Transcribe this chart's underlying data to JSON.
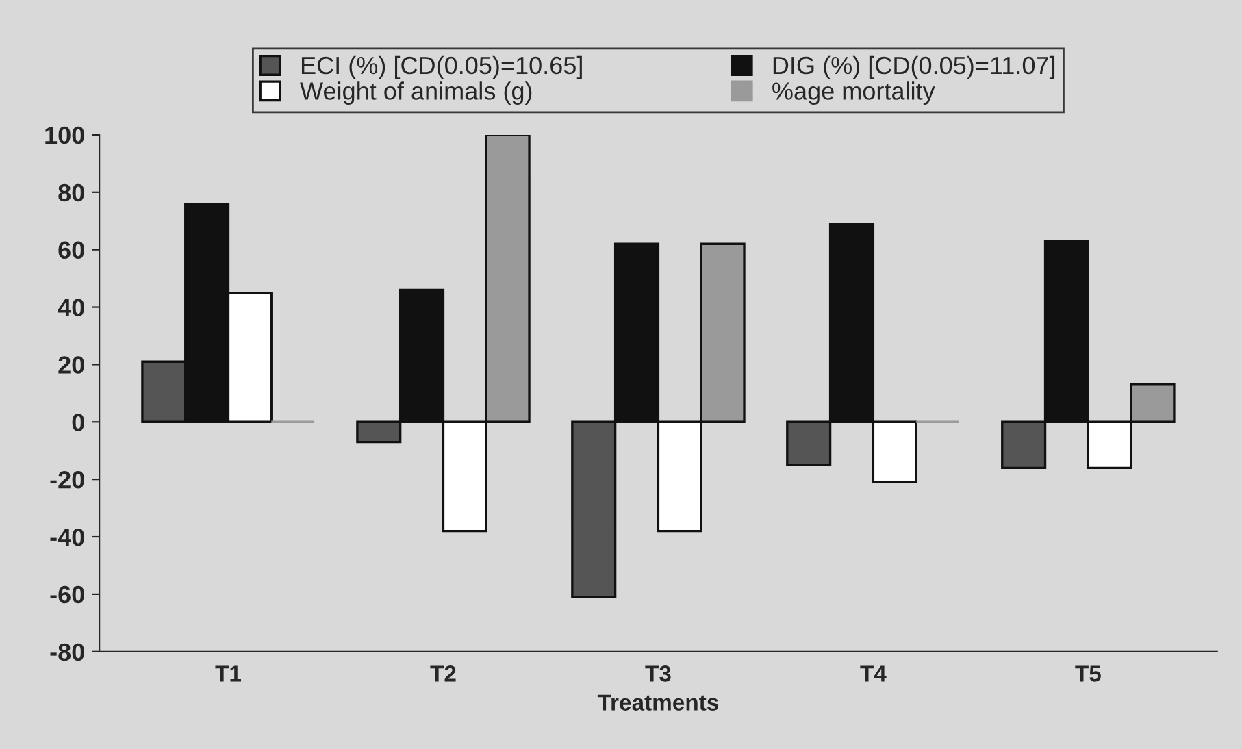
{
  "chart_data": {
    "type": "bar",
    "xlabel": "Treatments",
    "categories": [
      "T1",
      "T2",
      "T3",
      "T4",
      "T5"
    ],
    "series": [
      {
        "name": "ECI (%) [CD(0.05)=10.65]",
        "color": "#555555",
        "values": [
          21,
          -7,
          -61,
          -15,
          -16
        ]
      },
      {
        "name": "DIG (%) [CD(0.05)=11.07]",
        "color": "#111111",
        "values": [
          76,
          46,
          62,
          69,
          63
        ]
      },
      {
        "name": "Weight of animals (g)",
        "color": "#ffffff",
        "values": [
          45,
          -38,
          -38,
          -21,
          -16
        ]
      },
      {
        "name": "%age mortality",
        "color": "#9a9a9a",
        "values": [
          0,
          100,
          62,
          0,
          13
        ]
      }
    ],
    "ylim": [
      -80,
      100
    ],
    "yticks": [
      -80,
      -60,
      -40,
      -20,
      0,
      20,
      40,
      60,
      80,
      100
    ],
    "grid": false,
    "legend": "top"
  }
}
